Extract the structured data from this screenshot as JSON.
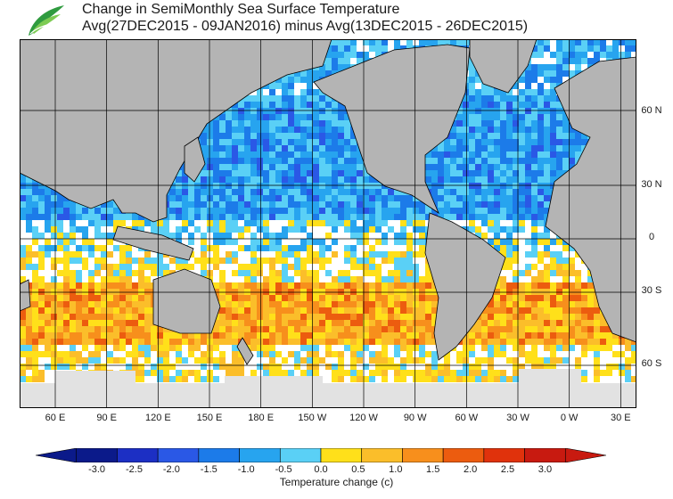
{
  "header": {
    "title_line1": "Change in SemiMonthly Sea Surface Temperature",
    "title_line2": "Avg(27DEC2015 - 09JAN2016) minus Avg(13DEC2015 - 26DEC2015)",
    "logo_icon": "leaf-logo-icon"
  },
  "map": {
    "lon_labels": [
      "60 E",
      "90 E",
      "120 E",
      "150 E",
      "180 E",
      "150 W",
      "120 W",
      "90 W",
      "60 W",
      "30 W",
      "0 W",
      "30 E"
    ],
    "lat_labels": [
      "60 N",
      "30 N",
      "0",
      "30 S",
      "60 S"
    ],
    "colors": {
      "land": "#b4b4b4",
      "ice": "#e2e2e2",
      "ocean_neutral": "#ffffff",
      "grid": "#000000",
      "coast": "#000000"
    }
  },
  "legend": {
    "title": "Temperature change  (c)",
    "ticks": [
      "-3.0",
      "-2.5",
      "-2.0",
      "-1.5",
      "-1.0",
      "-0.5",
      "0.0",
      "0.5",
      "1.0",
      "1.5",
      "2.0",
      "2.5",
      "3.0"
    ],
    "colors": [
      "#0b1a8a",
      "#1c2fc4",
      "#2a58e6",
      "#1c7be9",
      "#27a4ef",
      "#5ad0f6",
      "#ffffff",
      "#ffe01a",
      "#fbbe2a",
      "#f78f1c",
      "#ec5c0f",
      "#e0320c",
      "#c81a10"
    ]
  }
}
